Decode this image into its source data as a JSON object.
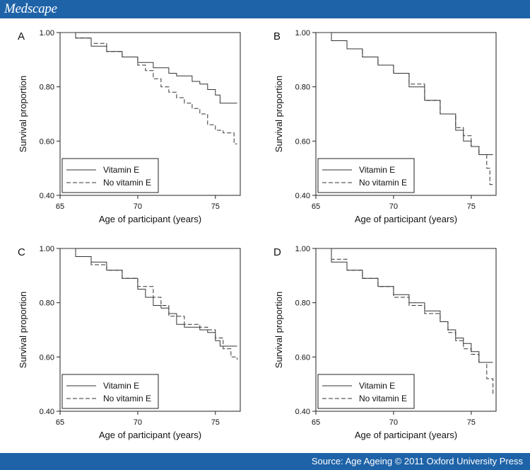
{
  "header": {
    "brand": "Medscape"
  },
  "footer": {
    "source": "Source: Age Ageing © 2011 Oxford University Press"
  },
  "chart_data": [
    {
      "panel": "A",
      "type": "line",
      "step": true,
      "xlabel": "Age of participant (years)",
      "ylabel": "Survival proportion",
      "xlim": [
        65,
        76.6
      ],
      "ylim": [
        0.4,
        1.0
      ],
      "xticks": [
        65,
        70,
        75
      ],
      "xtick_labels": [
        "65",
        "70",
        "75"
      ],
      "yticks": [
        0.4,
        0.6,
        0.8,
        1.0
      ],
      "ytick_labels": [
        "0.40",
        "0.60",
        "0.80",
        "1.00"
      ],
      "legend_position": "bottom-left",
      "series": [
        {
          "name": "Vitamin E",
          "dash": "solid",
          "x": [
            65,
            66,
            67,
            68,
            69,
            70,
            71,
            72,
            72.5,
            73,
            73.5,
            74,
            74.5,
            75,
            75.3,
            76.4
          ],
          "y": [
            1.0,
            0.98,
            0.95,
            0.93,
            0.91,
            0.89,
            0.87,
            0.85,
            0.84,
            0.84,
            0.82,
            0.81,
            0.79,
            0.77,
            0.74,
            0.74
          ]
        },
        {
          "name": "No vitamin E",
          "dash": "dashed",
          "x": [
            65,
            66,
            67,
            68,
            69,
            70,
            70.5,
            71,
            71.5,
            72,
            72.5,
            73,
            73.5,
            74,
            74.5,
            75,
            75.5,
            76,
            76.2,
            76.4
          ],
          "y": [
            1.0,
            0.98,
            0.96,
            0.93,
            0.91,
            0.88,
            0.86,
            0.83,
            0.8,
            0.78,
            0.76,
            0.74,
            0.72,
            0.7,
            0.66,
            0.64,
            0.63,
            0.63,
            0.59,
            0.59
          ]
        }
      ]
    },
    {
      "panel": "B",
      "type": "line",
      "step": true,
      "xlabel": "Age of participant (years)",
      "ylabel": "Survival proportion",
      "xlim": [
        65,
        76.6
      ],
      "ylim": [
        0.4,
        1.0
      ],
      "xticks": [
        65,
        70,
        75
      ],
      "xtick_labels": [
        "65",
        "70",
        "75"
      ],
      "yticks": [
        0.4,
        0.6,
        0.8,
        1.0
      ],
      "ytick_labels": [
        "0.40",
        "0.60",
        "0.80",
        "1.00"
      ],
      "legend_position": "bottom-left",
      "series": [
        {
          "name": "Vitamin E",
          "dash": "solid",
          "x": [
            65,
            66,
            67,
            68,
            69,
            70,
            71,
            72,
            73,
            74,
            74.5,
            75,
            75.5,
            76.4
          ],
          "y": [
            1.0,
            0.97,
            0.94,
            0.91,
            0.88,
            0.85,
            0.8,
            0.75,
            0.7,
            0.64,
            0.6,
            0.58,
            0.55,
            0.55
          ]
        },
        {
          "name": "No vitamin E",
          "dash": "dashed",
          "x": [
            65,
            66,
            67,
            68,
            69,
            70,
            71,
            72,
            73,
            74,
            74.5,
            75,
            75.5,
            76,
            76.2,
            76.4
          ],
          "y": [
            1.0,
            0.97,
            0.94,
            0.91,
            0.88,
            0.85,
            0.81,
            0.75,
            0.7,
            0.65,
            0.62,
            0.58,
            0.55,
            0.5,
            0.44,
            0.44
          ]
        }
      ]
    },
    {
      "panel": "C",
      "type": "line",
      "step": true,
      "xlabel": "Age of participant (years)",
      "ylabel": "Survival proportion",
      "xlim": [
        65,
        76.6
      ],
      "ylim": [
        0.4,
        1.0
      ],
      "xticks": [
        65,
        70,
        75
      ],
      "xtick_labels": [
        "65",
        "70",
        "75"
      ],
      "yticks": [
        0.4,
        0.6,
        0.8,
        1.0
      ],
      "ytick_labels": [
        "0.40",
        "0.60",
        "0.80",
        "1.00"
      ],
      "legend_position": "bottom-left",
      "series": [
        {
          "name": "Vitamin E",
          "dash": "solid",
          "x": [
            65,
            66,
            67,
            68,
            69,
            70,
            70.5,
            71,
            71.5,
            72,
            72.5,
            73,
            74,
            74.5,
            75,
            75.3,
            76.4
          ],
          "y": [
            1.0,
            0.97,
            0.95,
            0.92,
            0.89,
            0.85,
            0.82,
            0.79,
            0.78,
            0.76,
            0.72,
            0.71,
            0.7,
            0.69,
            0.66,
            0.64,
            0.64
          ]
        },
        {
          "name": "No vitamin E",
          "dash": "dashed",
          "x": [
            65,
            66,
            67,
            68,
            69,
            70,
            71,
            71.5,
            72,
            73,
            74,
            74.5,
            75,
            75.5,
            76,
            76.4
          ],
          "y": [
            1.0,
            0.97,
            0.94,
            0.92,
            0.89,
            0.86,
            0.82,
            0.79,
            0.75,
            0.72,
            0.71,
            0.7,
            0.67,
            0.63,
            0.6,
            0.59
          ]
        }
      ]
    },
    {
      "panel": "D",
      "type": "line",
      "step": true,
      "xlabel": "Age of participant (years)",
      "ylabel": "Survival proportion",
      "xlim": [
        65,
        76.6
      ],
      "ylim": [
        0.4,
        1.0
      ],
      "xticks": [
        65,
        70,
        75
      ],
      "xtick_labels": [
        "65",
        "70",
        "75"
      ],
      "yticks": [
        0.4,
        0.6,
        0.8,
        1.0
      ],
      "ytick_labels": [
        "0.40",
        "0.60",
        "0.80",
        "1.00"
      ],
      "legend_position": "bottom-left",
      "series": [
        {
          "name": "Vitamin E",
          "dash": "solid",
          "x": [
            65,
            66,
            67,
            68,
            69,
            70,
            71,
            72,
            73,
            73.5,
            74,
            74.5,
            75,
            75.5,
            76.4
          ],
          "y": [
            1.0,
            0.95,
            0.92,
            0.89,
            0.86,
            0.83,
            0.8,
            0.77,
            0.73,
            0.7,
            0.67,
            0.65,
            0.62,
            0.58,
            0.58
          ]
        },
        {
          "name": "No vitamin E",
          "dash": "dashed",
          "x": [
            65,
            66,
            67,
            68,
            69,
            70,
            71,
            72,
            73,
            73.5,
            74,
            74.5,
            75,
            75.5,
            76,
            76.4
          ],
          "y": [
            1.0,
            0.96,
            0.92,
            0.89,
            0.86,
            0.82,
            0.79,
            0.76,
            0.73,
            0.69,
            0.66,
            0.63,
            0.61,
            0.58,
            0.52,
            0.46
          ]
        }
      ]
    }
  ]
}
